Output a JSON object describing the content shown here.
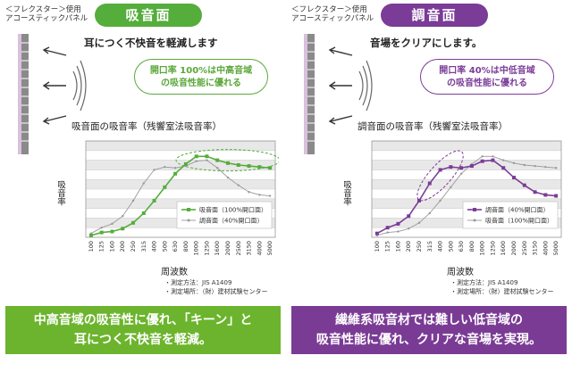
{
  "left": {
    "product": "＜フレクスター＞使用\nアコースティックパネル",
    "badge": "吸音面",
    "subtitle": "耳につく不快音を軽減します",
    "callout_line1": "開口率 100%は中高音域",
    "callout_line2": "の吸音性能に優れる",
    "graph_title": "吸音面の吸音率（残響室法吸音率）",
    "ylabel": "吸音率",
    "xtitle": "周波数",
    "note1": "・測定方法：JIS A1409",
    "note2": "・測定場所：（財）建材試験センター",
    "bottom_line1": "中高音域の吸音性に優れ、「キーン」と",
    "bottom_line2": "耳につく不快音を軽減。",
    "accent": "#55ad3c"
  },
  "right": {
    "product": "＜フレクスター＞使用\nアコースティックパネル",
    "badge": "調音面",
    "subtitle": "音場をクリアにします。",
    "callout_line1": "開口率 40%は中低音域",
    "callout_line2": "の吸音性能に優れる",
    "graph_title": "調音面の吸音率（残響室法吸音率）",
    "ylabel": "吸音率",
    "xtitle": "周波数",
    "note1": "・測定方法：JIS A1409",
    "note2": "・測定場所：（財）建材試験センター",
    "bottom_line1": "繊維系吸音材では難しい低音域の",
    "bottom_line2": "吸音性能に優れ、クリアな音場を実現。",
    "accent": "#7a3c96"
  },
  "chart_data": [
    {
      "type": "line",
      "title": "吸音面の吸音率（残響室法吸音率）",
      "xlabel": "周波数",
      "ylabel": "吸音率",
      "categories": [
        "100",
        "125",
        "160",
        "200",
        "250",
        "315",
        "400",
        "500",
        "630",
        "800",
        "1000",
        "1250",
        "1600",
        "2000",
        "2500",
        "3150",
        "4000",
        "5000"
      ],
      "ylim": [
        0,
        1.0
      ],
      "series": [
        {
          "name": "吸音面（100%開口面）",
          "color": "#55ad3c",
          "emphasis": true,
          "values": [
            0.02,
            0.05,
            0.06,
            0.09,
            0.15,
            0.25,
            0.38,
            0.52,
            0.66,
            0.76,
            0.84,
            0.84,
            0.8,
            0.77,
            0.75,
            0.74,
            0.73,
            0.72
          ]
        },
        {
          "name": "調音面（40%開口面）",
          "color": "#999999",
          "emphasis": false,
          "values": [
            0.04,
            0.1,
            0.14,
            0.22,
            0.38,
            0.56,
            0.7,
            0.73,
            0.72,
            0.74,
            0.79,
            0.8,
            0.72,
            0.62,
            0.54,
            0.47,
            0.44,
            0.43
          ]
        }
      ],
      "highlight": "high",
      "legend": "lower-right"
    },
    {
      "type": "line",
      "title": "調音面の吸音率（残響室法吸音率）",
      "xlabel": "周波数",
      "ylabel": "吸音率",
      "categories": [
        "100",
        "125",
        "160",
        "200",
        "250",
        "315",
        "400",
        "500",
        "630",
        "800",
        "1000",
        "1250",
        "1600",
        "2000",
        "2500",
        "3150",
        "4000",
        "5000"
      ],
      "ylim": [
        0,
        1.0
      ],
      "series": [
        {
          "name": "調音面（40%開口面）",
          "color": "#7a3c96",
          "emphasis": true,
          "values": [
            0.04,
            0.1,
            0.14,
            0.22,
            0.38,
            0.56,
            0.7,
            0.73,
            0.72,
            0.74,
            0.79,
            0.8,
            0.72,
            0.62,
            0.54,
            0.47,
            0.44,
            0.43
          ]
        },
        {
          "name": "吸音面（100%開口面）",
          "color": "#999999",
          "emphasis": false,
          "values": [
            0.02,
            0.05,
            0.06,
            0.09,
            0.15,
            0.25,
            0.38,
            0.52,
            0.66,
            0.76,
            0.84,
            0.84,
            0.8,
            0.77,
            0.75,
            0.74,
            0.73,
            0.72
          ]
        }
      ],
      "highlight": "low-mid",
      "legend": "lower-right"
    }
  ]
}
